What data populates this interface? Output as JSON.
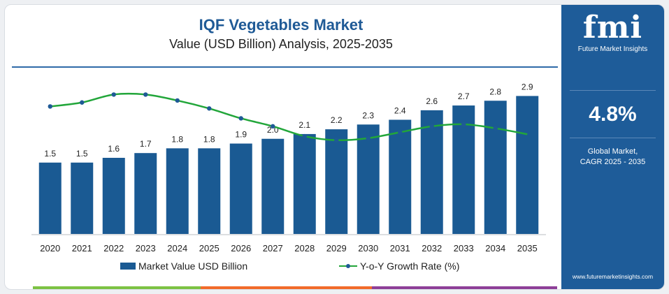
{
  "header": {
    "title": "IQF Vegetables Market",
    "subtitle": "Value (USD Billion) Analysis, 2025-2035"
  },
  "chart_data": {
    "type": "bar",
    "categories": [
      "2020",
      "2021",
      "2022",
      "2023",
      "2024",
      "2025",
      "2026",
      "2027",
      "2028",
      "2029",
      "2030",
      "2031",
      "2032",
      "2033",
      "2034",
      "2035"
    ],
    "series": [
      {
        "name": "Market Value USD Billion",
        "type": "bar",
        "values": [
          1.5,
          1.5,
          1.6,
          1.7,
          1.8,
          1.8,
          1.9,
          2.0,
          2.1,
          2.2,
          2.3,
          2.4,
          2.6,
          2.7,
          2.8,
          2.9
        ],
        "labels": [
          "1.5",
          "1.5",
          "1.6",
          "1.7",
          "1.8",
          "1.8",
          "1.9",
          "2.0",
          "2.1",
          "2.2",
          "2.3",
          "2.4",
          "2.6",
          "2.7",
          "2.8",
          "2.9"
        ],
        "color": "#1a5a93"
      },
      {
        "name": "Y-o-Y Growth Rate (%)",
        "type": "line",
        "values": [
          6.4,
          6.6,
          7.0,
          7.0,
          6.7,
          6.3,
          5.8,
          5.4,
          4.9,
          4.7,
          4.8,
          5.1,
          5.4,
          5.5,
          5.3,
          5.0
        ],
        "color": "#22a63a",
        "marker_color": "#1f5a96"
      }
    ],
    "legend": {
      "position": "bottom"
    },
    "grid": false
  },
  "legend": {
    "bar_label": "Market Value USD Billion",
    "line_label": "Y-o-Y Growth Rate (%)"
  },
  "side_panel": {
    "logo_text": "fmi",
    "logo_subtitle": "Future Market Insights",
    "cagr_value": "4.8%",
    "cagr_label_1": "Global Market,",
    "cagr_label_2": "CAGR 2025 - 2035",
    "website": "www.futuremarketinsights.com"
  },
  "colors": {
    "bar": "#1a5a93",
    "line": "#22a63a",
    "title": "#1f5a96",
    "side_panel": "#1e5c99",
    "footer": [
      "#7cc243",
      "#f26b2a",
      "#8e3f98"
    ]
  }
}
